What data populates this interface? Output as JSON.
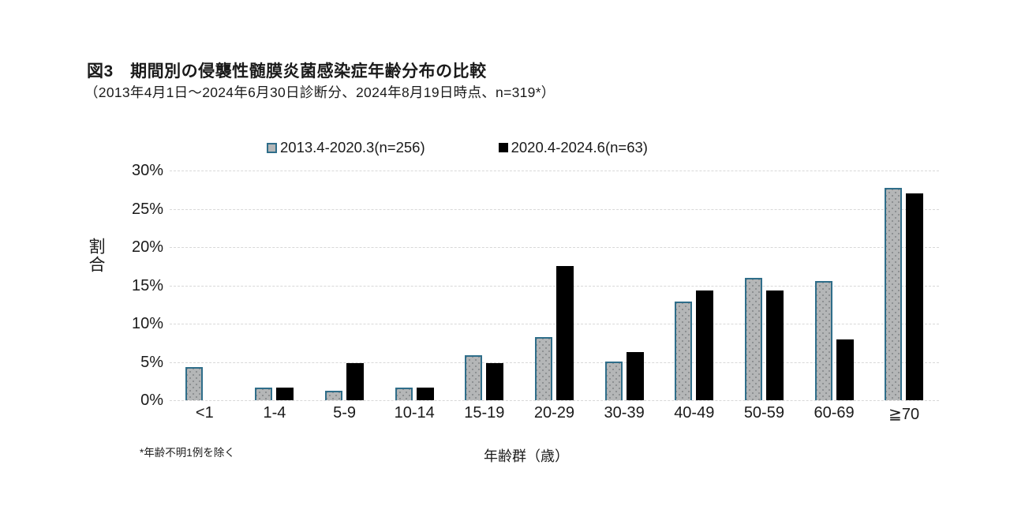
{
  "chart_data": {
    "type": "bar",
    "title": "図3　期間別の侵襲性髄膜炎菌感染症年齢分布の比較",
    "subtitle": "（2013年4月1日～2024年6月30日診断分、2024年8月19日時点、n=319*）",
    "categories": [
      "<1",
      "1-4",
      "5-9",
      "10-14",
      "15-19",
      "20-29",
      "30-39",
      "40-49",
      "50-59",
      "60-69",
      "≧70"
    ],
    "series": [
      {
        "name": "2013.4-2020.3(n=256)",
        "values": [
          4.3,
          1.6,
          1.2,
          1.6,
          5.9,
          8.2,
          5.1,
          12.9,
          16.0,
          15.6,
          27.7
        ]
      },
      {
        "name": "2020.4-2024.6(n=63)",
        "values": [
          0,
          1.6,
          4.8,
          1.6,
          4.8,
          17.5,
          6.3,
          14.3,
          14.3,
          7.9,
          27.0
        ]
      }
    ],
    "ylabel": "割合",
    "xlabel": "年齢群（歳）",
    "ylim": [
      0,
      30
    ],
    "ytick_step": 5,
    "ytick_labels": [
      "0%",
      "5%",
      "10%",
      "15%",
      "20%",
      "25%",
      "30%"
    ],
    "footnote": "*年齢不明1例を除く",
    "grid": true,
    "legend_position": "top",
    "colors": {
      "series1_fill": "#b4b6b7",
      "series1_dots": "#8a8d8f",
      "series1_border": "#2f6e8a",
      "series2_fill": "#000000",
      "gridline": "#d8d8d8",
      "text": "#1a1a1a"
    }
  }
}
